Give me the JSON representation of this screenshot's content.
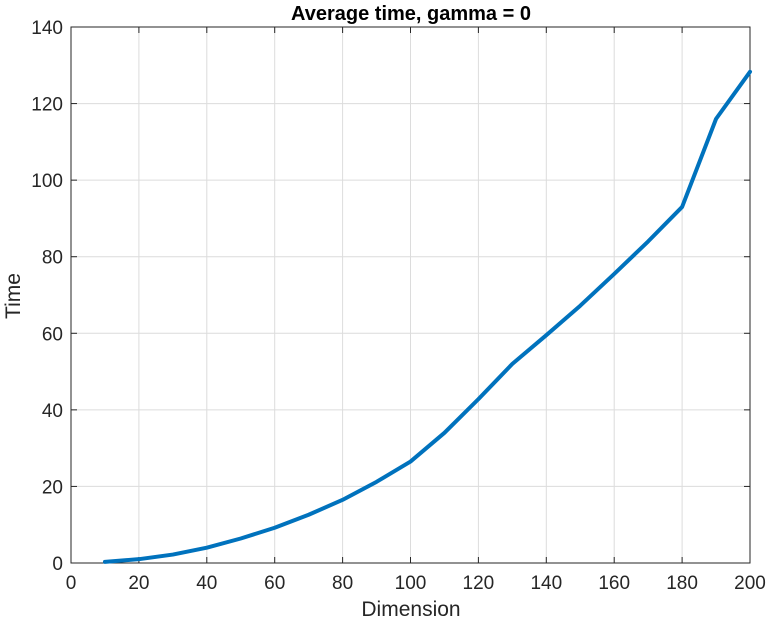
{
  "chart_data": {
    "type": "line",
    "title": "Average time, gamma = 0",
    "xlabel": "Dimension",
    "ylabel": "Time",
    "xlim": [
      0,
      200
    ],
    "ylim": [
      0,
      140
    ],
    "xticks": [
      0,
      20,
      40,
      60,
      80,
      100,
      120,
      140,
      160,
      180,
      200
    ],
    "yticks": [
      0,
      20,
      40,
      60,
      80,
      100,
      120,
      140
    ],
    "grid": true,
    "legend": "none",
    "series": [
      {
        "color": "#0072BD",
        "x": [
          10,
          20,
          30,
          40,
          50,
          60,
          70,
          80,
          90,
          100,
          110,
          120,
          130,
          140,
          150,
          160,
          170,
          180,
          190,
          200
        ],
        "y": [
          0.3,
          1.0,
          2.2,
          4.0,
          6.4,
          9.2,
          12.6,
          16.5,
          21.2,
          26.5,
          34.0,
          42.8,
          52.0,
          59.5,
          67.2,
          75.5,
          84.0,
          93.0,
          116.0,
          128.3
        ]
      }
    ]
  }
}
